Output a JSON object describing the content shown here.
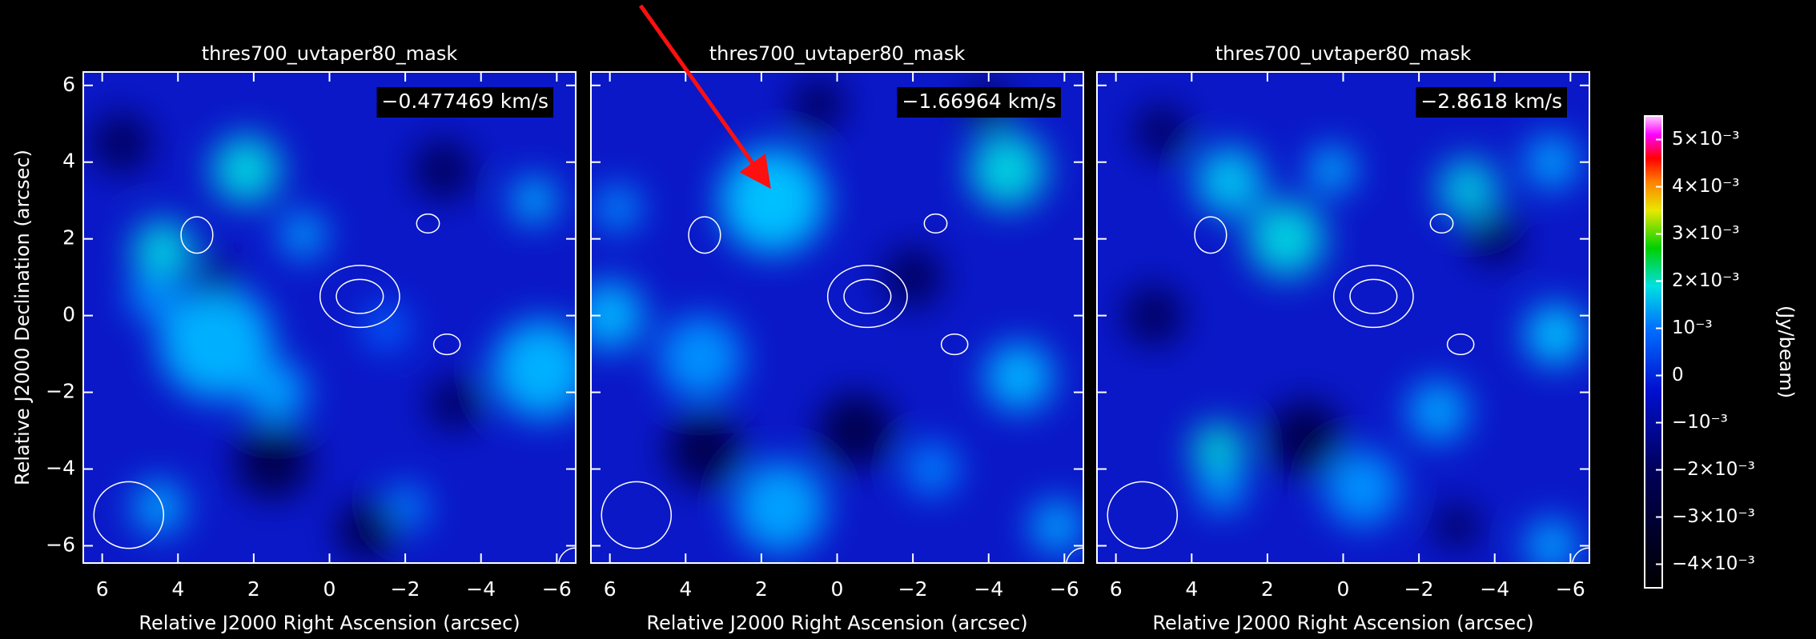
{
  "chart_data": [
    {
      "type": "heatmap",
      "title": "thres700_uvtaper80_mask",
      "annotation": "−0.477469 km/s",
      "xlabel": "Relative J2000 Right Ascension (arcsec)",
      "ylabel": "Relative J2000 Declination (arcsec)",
      "xlim": [
        6.5,
        -6.5
      ],
      "ylim": [
        -6.45,
        6.35
      ],
      "xticks": [
        6,
        4,
        2,
        0,
        {
          "value": -2,
          "label": "−2"
        },
        {
          "value": -4,
          "label": "−4"
        },
        {
          "value": -6,
          "label": "−6"
        }
      ],
      "yticks": [
        {
          "value": -6,
          "label": "−6"
        },
        {
          "value": -4,
          "label": "−4"
        },
        {
          "value": -2,
          "label": "−2"
        },
        0,
        2,
        4,
        6
      ]
    },
    {
      "type": "heatmap",
      "title": "thres700_uvtaper80_mask",
      "annotation": "−1.66964 km/s",
      "xlabel": "Relative J2000 Right Ascension (arcsec)",
      "xlim": [
        6.5,
        -6.5
      ],
      "ylim": [
        -6.45,
        6.35
      ],
      "xticks": [
        6,
        4,
        2,
        0,
        {
          "value": -2,
          "label": "−2"
        },
        {
          "value": -4,
          "label": "−4"
        },
        {
          "value": -6,
          "label": "−6"
        }
      ],
      "yticks": [
        -6,
        -4,
        -2,
        0,
        2,
        4,
        6
      ]
    },
    {
      "type": "heatmap",
      "title": "thres700_uvtaper80_mask",
      "annotation": "−2.8618 km/s",
      "xlabel": "Relative J2000 Right Ascension (arcsec)",
      "xlim": [
        6.5,
        -6.5
      ],
      "ylim": [
        -6.45,
        6.35
      ],
      "xticks": [
        6,
        4,
        2,
        0,
        {
          "value": -2,
          "label": "−2"
        },
        {
          "value": -4,
          "label": "−4"
        },
        {
          "value": -6,
          "label": "−6"
        }
      ],
      "yticks": [
        -6,
        -4,
        -2,
        0,
        2,
        4,
        6
      ]
    }
  ],
  "colorbar": {
    "label": "(Jy/beam)",
    "clim": [
      -0.0045,
      0.0055
    ],
    "ticks": [
      {
        "value": 0.005,
        "label": "5×10⁻³"
      },
      {
        "value": 0.004,
        "label": "4×10⁻³"
      },
      {
        "value": 0.003,
        "label": "3×10⁻³"
      },
      {
        "value": 0.002,
        "label": "2×10⁻³"
      },
      {
        "value": 0.001,
        "label": "10⁻³"
      },
      0,
      {
        "value": -0.001,
        "label": "−10⁻³"
      },
      {
        "value": -0.002,
        "label": "−2×10⁻³"
      },
      {
        "value": -0.003,
        "label": "−3×10⁻³"
      },
      {
        "value": -0.004,
        "label": "−4×10⁻³"
      }
    ]
  }
}
